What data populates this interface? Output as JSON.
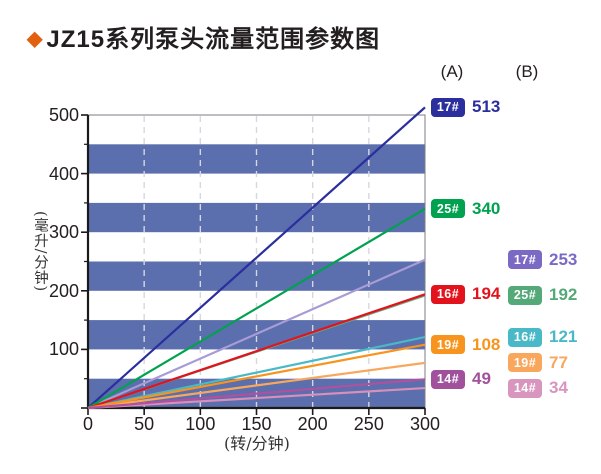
{
  "title": {
    "marker": "◆",
    "text": "JZ15系列泵头流量范围参数图",
    "marker_color": "#e2610e"
  },
  "column_headers": {
    "a": "(A)",
    "b": "(B)"
  },
  "chart_data": {
    "type": "line",
    "title": "JZ15系列泵头流量范围参数图",
    "xlabel": "(转/分钟)",
    "ylabel": "(毫升/分钟)",
    "xlim": [
      0,
      300
    ],
    "ylim": [
      0,
      500
    ],
    "x_ticks": [
      0,
      50,
      100,
      150,
      200,
      250,
      300
    ],
    "y_ticks_major": [
      0,
      100,
      200,
      300,
      400,
      500
    ],
    "y_ticks_minor": [
      50,
      150,
      250,
      350,
      450
    ],
    "grid": {
      "vertical_dashed_x": [
        50,
        100,
        150,
        200,
        250
      ],
      "color": "#d7d7df"
    },
    "background_bands": {
      "color": "#5b6ead",
      "value_ranges": [
        [
          0,
          50
        ],
        [
          100,
          150
        ],
        [
          200,
          250
        ],
        [
          300,
          350
        ],
        [
          400,
          450
        ]
      ]
    },
    "legend_note": "lines run from origin (0,0) to 300 rpm; end flow value labeled in columns A and B",
    "series": [
      {
        "group": "A",
        "label": "17#",
        "x": [
          0,
          300
        ],
        "values": [
          0,
          513
        ],
        "end_value": 513,
        "color": "#2b2f9e",
        "line_color": "#2b2f9e"
      },
      {
        "group": "A",
        "label": "25#",
        "x": [
          0,
          300
        ],
        "values": [
          0,
          340
        ],
        "end_value": 340,
        "color": "#00a24f",
        "line_color": "#00a24f"
      },
      {
        "group": "A",
        "label": "16#",
        "x": [
          0,
          300
        ],
        "values": [
          0,
          194
        ],
        "end_value": 194,
        "color": "#e3131d",
        "line_color": "#e3131d"
      },
      {
        "group": "A",
        "label": "19#",
        "x": [
          0,
          300
        ],
        "values": [
          0,
          108
        ],
        "end_value": 108,
        "color": "#f7941e",
        "line_color": "#f7941e"
      },
      {
        "group": "A",
        "label": "14#",
        "x": [
          0,
          300
        ],
        "values": [
          0,
          49
        ],
        "end_value": 49,
        "color": "#a1519c",
        "line_color": "#b0519f"
      },
      {
        "group": "B",
        "label": "17#",
        "x": [
          0,
          300
        ],
        "values": [
          0,
          253
        ],
        "end_value": 253,
        "color": "#7b69c4",
        "line_color": "#a89bd6"
      },
      {
        "group": "B",
        "label": "25#",
        "x": [
          0,
          300
        ],
        "values": [
          0,
          192
        ],
        "end_value": 192,
        "color": "#55a878",
        "line_color": "#5fb184"
      },
      {
        "group": "B",
        "label": "16#",
        "x": [
          0,
          300
        ],
        "values": [
          0,
          121
        ],
        "end_value": 121,
        "color": "#4ab9c7",
        "line_color": "#4ab9c7"
      },
      {
        "group": "B",
        "label": "19#",
        "x": [
          0,
          300
        ],
        "values": [
          0,
          77
        ],
        "end_value": 77,
        "color": "#f9a75c",
        "line_color": "#f9a75c"
      },
      {
        "group": "B",
        "label": "14#",
        "x": [
          0,
          300
        ],
        "values": [
          0,
          34
        ],
        "end_value": 34,
        "color": "#d895bd",
        "line_color": "#d88fb9"
      }
    ]
  }
}
